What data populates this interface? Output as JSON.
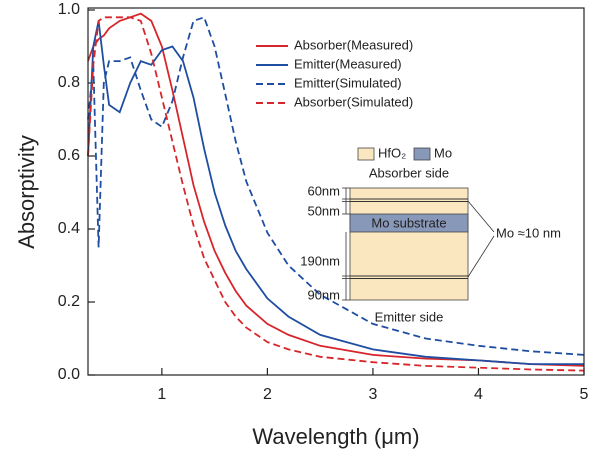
{
  "chart_data": {
    "type": "line",
    "x_label": "Wavelength (μm)",
    "y_label": "Absorptivity",
    "xlim": [
      0.3,
      5
    ],
    "ylim": [
      0,
      1.0
    ],
    "xticks": [
      1,
      2,
      3,
      4,
      5
    ],
    "yticks": [
      {
        "value": 0,
        "label": "0.0"
      },
      0.2,
      0.4,
      0.6,
      0.8,
      {
        "value": 1,
        "label": "1.0"
      }
    ],
    "legend": "top-right",
    "x": [
      0.3,
      0.35,
      0.4,
      0.45,
      0.5,
      0.6,
      0.7,
      0.8,
      0.9,
      1.0,
      1.1,
      1.2,
      1.3,
      1.4,
      1.5,
      1.6,
      1.7,
      1.8,
      2.0,
      2.2,
      2.5,
      3.0,
      3.5,
      4.0,
      4.5,
      5.0
    ],
    "series": [
      {
        "name": "Absorber(Measured)",
        "color": "#d7262b",
        "dash": false,
        "values": [
          0.86,
          0.9,
          0.92,
          0.93,
          0.95,
          0.97,
          0.98,
          0.99,
          0.97,
          0.9,
          0.78,
          0.65,
          0.52,
          0.42,
          0.34,
          0.28,
          0.23,
          0.19,
          0.14,
          0.11,
          0.08,
          0.055,
          0.045,
          0.04,
          0.03,
          0.025
        ]
      },
      {
        "name": "Emitter(Measured)",
        "color": "#1f4ea1",
        "dash": false,
        "values": [
          0.6,
          0.9,
          0.97,
          0.85,
          0.74,
          0.72,
          0.8,
          0.86,
          0.85,
          0.89,
          0.9,
          0.86,
          0.76,
          0.62,
          0.5,
          0.41,
          0.34,
          0.29,
          0.21,
          0.16,
          0.11,
          0.07,
          0.05,
          0.04,
          0.03,
          0.03
        ]
      },
      {
        "name": "Emitter(Simulated)",
        "color": "#1f4ea1",
        "dash": true,
        "values": [
          0.7,
          0.85,
          0.35,
          0.8,
          0.86,
          0.86,
          0.87,
          0.78,
          0.7,
          0.68,
          0.75,
          0.87,
          0.97,
          0.98,
          0.9,
          0.77,
          0.64,
          0.53,
          0.39,
          0.3,
          0.22,
          0.14,
          0.1,
          0.08,
          0.065,
          0.055
        ]
      },
      {
        "name": "Absorber(Simulated)",
        "color": "#d7262b",
        "dash": true,
        "values": [
          0.6,
          0.85,
          0.97,
          0.98,
          0.98,
          0.98,
          0.98,
          0.97,
          0.88,
          0.76,
          0.64,
          0.52,
          0.41,
          0.32,
          0.26,
          0.2,
          0.16,
          0.13,
          0.09,
          0.07,
          0.05,
          0.035,
          0.025,
          0.02,
          0.015,
          0.012
        ]
      }
    ],
    "inset": {
      "legend_hfo2": "HfO₂",
      "legend_mo": "Mo",
      "top_label": "Absorber side",
      "layer_60": "60nm",
      "layer_50": "50nm",
      "substrate": "Mo substrate",
      "mo_thickness": "Mo ≈10 nm",
      "layer_190": "190nm",
      "layer_90": "90nm",
      "bottom_label": "Emitter side"
    }
  }
}
